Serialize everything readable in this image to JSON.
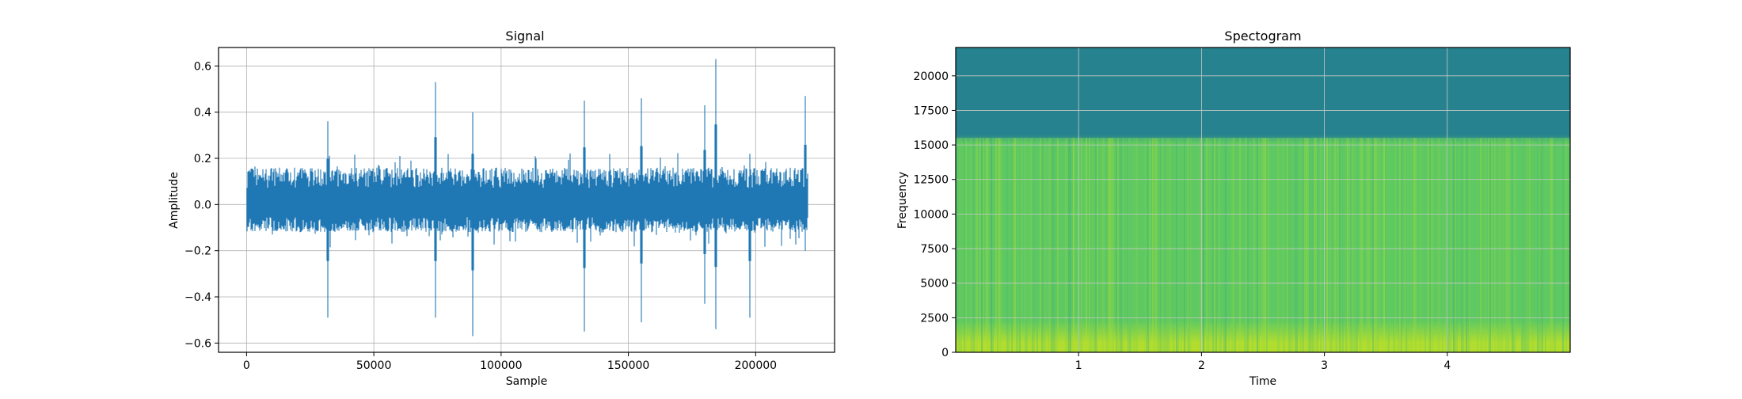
{
  "figure": {
    "chart_data": [
      {
        "type": "line",
        "title": "Signal",
        "xlabel": "Sample",
        "ylabel": "Amplitude",
        "xlim": [
          -11000,
          231000
        ],
        "ylim": [
          -0.64,
          0.68
        ],
        "x_ticks": [
          0,
          50000,
          100000,
          150000,
          200000
        ],
        "x_tick_labels": [
          "0",
          "50000",
          "100000",
          "150000",
          "200000"
        ],
        "y_ticks": [
          -0.6,
          -0.4,
          -0.2,
          0.0,
          0.2,
          0.4,
          0.6
        ],
        "y_tick_labels": [
          "−0.6",
          "−0.4",
          "−0.2",
          "0.0",
          "0.2",
          "0.4",
          "0.6"
        ],
        "grid": true,
        "color": "#1f77b4",
        "series": [
          {
            "x_range": [
              0,
              220500
            ],
            "typical_envelope": [
              -0.12,
              0.16
            ],
            "peaks": [
              {
                "x": 31800,
                "max": 0.36,
                "min": -0.49
              },
              {
                "x": 74300,
                "max": 0.53,
                "min": -0.49
              },
              {
                "x": 88900,
                "max": 0.4,
                "min": -0.57
              },
              {
                "x": 132600,
                "max": 0.45,
                "min": -0.55
              },
              {
                "x": 155100,
                "max": 0.46,
                "min": -0.51
              },
              {
                "x": 179900,
                "max": 0.43,
                "min": -0.43
              },
              {
                "x": 184300,
                "max": 0.63,
                "min": -0.54
              },
              {
                "x": 197800,
                "max": 0.22,
                "min": -0.49
              },
              {
                "x": 219600,
                "max": 0.47,
                "min": -0.2
              }
            ]
          }
        ]
      },
      {
        "type": "heatmap",
        "title": "Spectogram",
        "xlabel": "Time",
        "ylabel": "Frequency",
        "xlim": [
          0,
          5.0
        ],
        "ylim": [
          0,
          22050
        ],
        "x_ticks": [
          1,
          2,
          3,
          4
        ],
        "x_tick_labels": [
          "1",
          "2",
          "3",
          "4"
        ],
        "y_ticks": [
          0,
          2500,
          5000,
          7500,
          10000,
          12500,
          15000,
          17500,
          20000
        ],
        "y_tick_labels": [
          "0",
          "2500",
          "5000",
          "7500",
          "10000",
          "12500",
          "15000",
          "17500",
          "20000"
        ],
        "grid": true,
        "colormap": "viridis",
        "bands": [
          {
            "freq_range": [
              0,
              1500
            ],
            "level": 0.9
          },
          {
            "freq_range": [
              1500,
              15500
            ],
            "level": 0.75
          },
          {
            "freq_range": [
              15500,
              22050
            ],
            "level": 0.42
          }
        ]
      }
    ]
  }
}
